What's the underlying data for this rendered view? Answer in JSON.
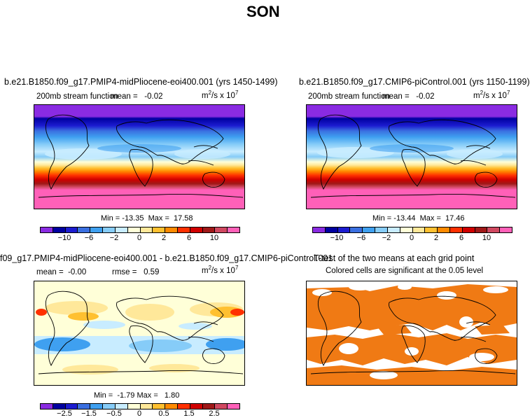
{
  "page_title": "SON",
  "panels": [
    {
      "title": "b.e21.B1850.f09_g17.PMIP4-midPliocene-eoi400.001 (yrs 1450-1499)",
      "var_label": "200mb stream function",
      "mean_label": "mean =",
      "mean_value": "-0.02",
      "units_base": "m",
      "units_exp1": "2",
      "units_mid": "/s x 10",
      "units_exp2": "7",
      "min_label": "Min =",
      "min_value": "-13.35",
      "max_label": "Max =",
      "max_value": "17.58"
    },
    {
      "title": "b.e21.B1850.f09_g17.CMIP6-piControl.001 (yrs 1150-1199)",
      "var_label": "200mb stream function",
      "mean_label": "mean =",
      "mean_value": "-0.02",
      "units_base": "m",
      "units_exp1": "2",
      "units_mid": "/s x 10",
      "units_exp2": "7",
      "min_label": "Min =",
      "min_value": "-13.44",
      "max_label": "Max =",
      "max_value": "17.46"
    },
    {
      "title": "f09_g17.PMIP4-midPliocene-eoi400.001 - b.e21.B1850.f09_g17.CMIP6-piControl.001",
      "mean_label": "mean =",
      "mean_value": "-0.00",
      "rmse_label": "rmse =",
      "rmse_value": "0.59",
      "units_base": "m",
      "units_exp1": "2",
      "units_mid": "/s x 10",
      "units_exp2": "7",
      "min_label": "Min =",
      "min_value": "-1.79",
      "max_label": "Max =",
      "max_value": "1.80"
    },
    {
      "title": "T-test of the two means at each grid point",
      "subtitle": "Colored cells are significant at the 0.05 level"
    }
  ],
  "colorbar_abs": {
    "colors": [
      "#8a2be2",
      "#0000a0",
      "#1c1cd0",
      "#3a6fe0",
      "#3fa0f0",
      "#86ccf8",
      "#c8ecff",
      "#ffffd8",
      "#ffe89a",
      "#ffc030",
      "#ff8a00",
      "#ff3000",
      "#d00000",
      "#a01818",
      "#d04860",
      "#ff60b8"
    ],
    "tick_labels": [
      "−10",
      "−6",
      "−2",
      "0",
      "2",
      "6",
      "10"
    ]
  },
  "colorbar_diff": {
    "colors": [
      "#8a2be2",
      "#0000a0",
      "#1c1cd0",
      "#3a6fe0",
      "#3fa0f0",
      "#86ccf8",
      "#c8ecff",
      "#ffffd8",
      "#ffe89a",
      "#ffc030",
      "#ff8a00",
      "#ff3000",
      "#d00000",
      "#a01818",
      "#d04860",
      "#ff60b8"
    ],
    "tick_labels": [
      "−2.5",
      "−1.5",
      "−0.5",
      "0",
      "0.5",
      "1.5",
      "2.5"
    ]
  },
  "significance_color": "#f07a14",
  "chart_data": [
    {
      "type": "heatmap",
      "title": "b.e21.B1850.f09_g17.PMIP4-midPliocene-eoi400.001 (yrs 1450-1499)",
      "field": "200mb stream function",
      "units": "m^2/s x 10^7",
      "mean": -0.02,
      "min": -13.35,
      "max": 17.58,
      "levels": [
        -14,
        -12,
        -10,
        -8,
        -6,
        -4,
        -2,
        0,
        2,
        4,
        6,
        8,
        10,
        12,
        14
      ],
      "zonal_profile_lat": [
        80,
        60,
        45,
        30,
        15,
        0,
        -15,
        -30,
        -45,
        -60,
        -80
      ],
      "zonal_profile_value": [
        -13,
        -11,
        -8,
        -4,
        -1,
        1,
        6,
        11,
        14,
        16,
        17
      ]
    },
    {
      "type": "heatmap",
      "title": "b.e21.B1850.f09_g17.CMIP6-piControl.001 (yrs 1150-1199)",
      "field": "200mb stream function",
      "units": "m^2/s x 10^7",
      "mean": -0.02,
      "min": -13.44,
      "max": 17.46,
      "levels": [
        -14,
        -12,
        -10,
        -8,
        -6,
        -4,
        -2,
        0,
        2,
        4,
        6,
        8,
        10,
        12,
        14
      ],
      "zonal_profile_lat": [
        80,
        60,
        45,
        30,
        15,
        0,
        -15,
        -30,
        -45,
        -60,
        -80
      ],
      "zonal_profile_value": [
        -13,
        -11,
        -8,
        -4,
        -1,
        1,
        6,
        11,
        14,
        16,
        17
      ]
    },
    {
      "type": "heatmap",
      "title": "f09_g17.PMIP4-midPliocene-eoi400.001 - b.e21.B1850.f09_g17.CMIP6-piControl.001",
      "units": "m^2/s x 10^7",
      "mean": -0.0,
      "rmse": 0.59,
      "min": -1.79,
      "max": 1.8,
      "levels": [
        -3,
        -2.5,
        -2,
        -1.5,
        -1,
        -0.5,
        0,
        0.5,
        1,
        1.5,
        2,
        2.5,
        3
      ]
    },
    {
      "type": "heatmap",
      "title": "T-test of the two means at each grid point",
      "subtitle": "Colored cells are significant at the 0.05 level",
      "significance_level": 0.05
    }
  ]
}
